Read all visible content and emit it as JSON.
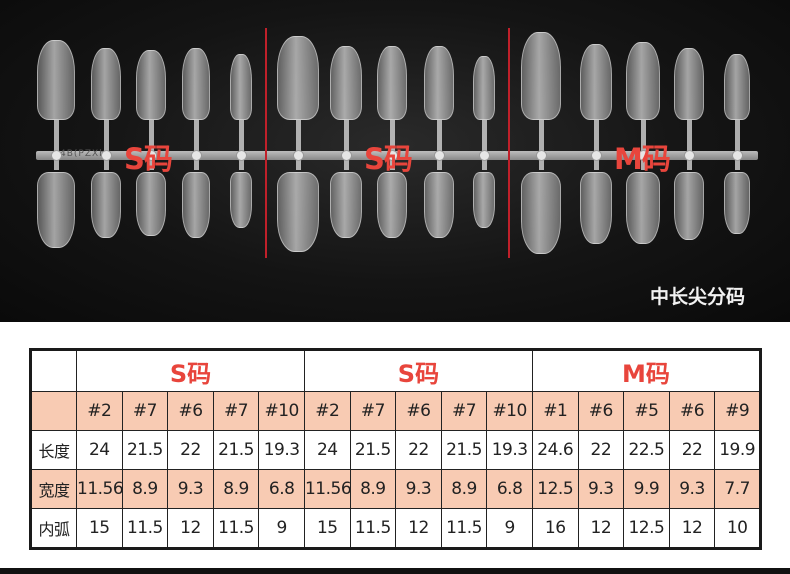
{
  "photo": {
    "group_labels": [
      "S码",
      "S码",
      "M码"
    ],
    "caption": "中长尖分码",
    "bar_text": "4B(PZXbt"
  },
  "table": {
    "groups": [
      "S码",
      "S码",
      "M码"
    ],
    "numbers": [
      "#2",
      "#7",
      "#6",
      "#7",
      "#10",
      "#2",
      "#7",
      "#6",
      "#7",
      "#10",
      "#1",
      "#6",
      "#5",
      "#6",
      "#9"
    ],
    "rows": [
      {
        "label": "长度",
        "values": [
          "24",
          "21.5",
          "22",
          "21.5",
          "19.3",
          "24",
          "21.5",
          "22",
          "21.5",
          "19.3",
          "24.6",
          "22",
          "22.5",
          "22",
          "19.9"
        ]
      },
      {
        "label": "宽度",
        "values": [
          "11.56",
          "8.9",
          "9.3",
          "8.9",
          "6.8",
          "11.56",
          "8.9",
          "9.3",
          "8.9",
          "6.8",
          "12.5",
          "9.3",
          "9.9",
          "9.3",
          "7.7"
        ]
      },
      {
        "label": "内弧",
        "values": [
          "15",
          "11.5",
          "12",
          "11.5",
          "9",
          "15",
          "11.5",
          "12",
          "11.5",
          "9",
          "16",
          "12",
          "12.5",
          "12",
          "10"
        ]
      }
    ]
  },
  "colors": {
    "accent_red": "#e8453c",
    "row_pink": "#f8cbb3",
    "photo_bg": "#141414"
  }
}
